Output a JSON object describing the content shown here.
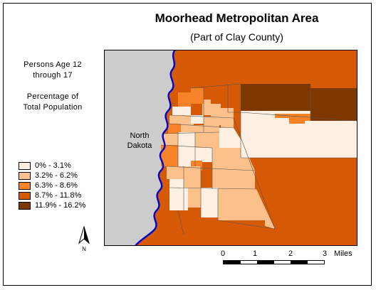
{
  "title": "Moorhead Metropolitan Area",
  "subtitle": "(Part of Clay County)",
  "side_text": {
    "line1": "Persons Age 12",
    "line2": "through 17",
    "line3": "Percentage of",
    "line4": "Total Population"
  },
  "map_label": {
    "line1": "North",
    "line2": "Dakota"
  },
  "legend": [
    {
      "label": "0% - 3.1%",
      "color": "#fdf0e2"
    },
    {
      "label": "3.2% - 6.2%",
      "color": "#fcc08a"
    },
    {
      "label": "6.3% - 8.6%",
      "color": "#f88228"
    },
    {
      "label": "8.7% - 11.8%",
      "color": "#d65a06"
    },
    {
      "label": "11.9% - 16.2%",
      "color": "#7f3700"
    }
  ],
  "scale": {
    "ticks": [
      "0",
      "1",
      "2",
      "3"
    ],
    "unit": "Miles"
  },
  "north_arrow": {
    "icon": "north-arrow-icon",
    "label": "N"
  },
  "colors": {
    "river": "#0000cc",
    "north_dakota": "#cccccc"
  }
}
